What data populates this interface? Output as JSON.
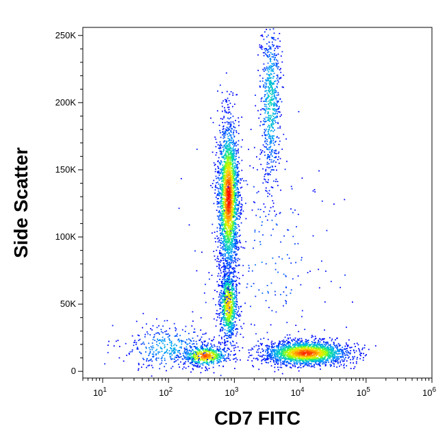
{
  "chart_data": {
    "type": "scatter",
    "subtype": "flow-cytometry-density-dot-plot",
    "title": "",
    "xlabel": "CD7 FITC",
    "ylabel": "Side Scatter",
    "x_scale": "log",
    "xlim": [
      5,
      1000000
    ],
    "ylim": [
      -5000,
      256000
    ],
    "x_ticks": [
      {
        "value": 10,
        "base": "10",
        "exp": "1"
      },
      {
        "value": 100,
        "base": "10",
        "exp": "2"
      },
      {
        "value": 1000,
        "base": "10",
        "exp": "3"
      },
      {
        "value": 10000,
        "base": "10",
        "exp": "4"
      },
      {
        "value": 100000,
        "base": "10",
        "exp": "5"
      },
      {
        "value": 1000000,
        "base": "10",
        "exp": "6"
      }
    ],
    "y_ticks": [
      {
        "value": 0,
        "label": "0"
      },
      {
        "value": 50000,
        "label": "50K"
      },
      {
        "value": 100000,
        "label": "100K"
      },
      {
        "value": 150000,
        "label": "150K"
      },
      {
        "value": 200000,
        "label": "200K"
      },
      {
        "value": 250000,
        "label": "250K"
      }
    ],
    "grid": false,
    "color_scale": [
      "#0000ff",
      "#00a0ff",
      "#00e0a0",
      "#a0ff00",
      "#ffe000",
      "#ff8000",
      "#ff0000"
    ],
    "populations": [
      {
        "x_center": 350,
        "y_center": 12000,
        "x_spread_decades": 0.18,
        "y_spread": 4000,
        "count": 550,
        "peak_density": 0.9
      },
      {
        "x_center": 100,
        "y_center": 18000,
        "x_spread_decades": 0.35,
        "y_spread": 9000,
        "count": 380,
        "peak_density": 0.2
      },
      {
        "x_center": 800,
        "y_center": 50000,
        "x_spread_decades": 0.07,
        "y_spread": 14000,
        "count": 900,
        "peak_density": 0.75
      },
      {
        "x_center": 800,
        "y_center": 130000,
        "x_spread_decades": 0.08,
        "y_spread": 28000,
        "count": 2300,
        "peak_density": 1.0
      },
      {
        "x_center": 3500,
        "y_center": 200000,
        "x_spread_decades": 0.08,
        "y_spread": 32000,
        "count": 700,
        "peak_density": 0.3
      },
      {
        "x_center": 12000,
        "y_center": 14000,
        "x_spread_decades": 0.32,
        "y_spread": 4500,
        "count": 2000,
        "peak_density": 0.95
      },
      {
        "x_center": 3000,
        "y_center": 80000,
        "x_spread_decades": 0.5,
        "y_spread": 40000,
        "count": 220,
        "peak_density": 0.1
      }
    ]
  }
}
